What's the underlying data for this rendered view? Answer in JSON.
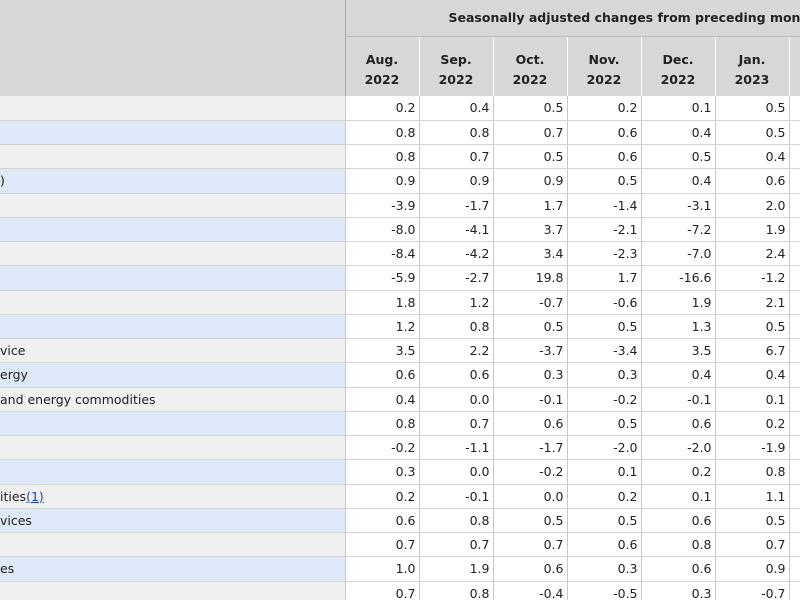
{
  "header": {
    "caption": "Seasonally adjusted changes from preceding month",
    "columns": [
      {
        "month": "Aug.",
        "year": "2022"
      },
      {
        "month": "Sep.",
        "year": "2022"
      },
      {
        "month": "Oct.",
        "year": "2022"
      },
      {
        "month": "Nov.",
        "year": "2022"
      },
      {
        "month": "Dec.",
        "year": "2022"
      },
      {
        "month": "Jan.",
        "year": "2023"
      }
    ]
  },
  "rows": [
    {
      "label": "",
      "footnote": "",
      "values": [
        "0.2",
        "0.4",
        "0.5",
        "0.2",
        "0.1",
        "0.5"
      ]
    },
    {
      "label": "",
      "footnote": "",
      "values": [
        "0.8",
        "0.8",
        "0.7",
        "0.6",
        "0.4",
        "0.5"
      ]
    },
    {
      "label": "",
      "footnote": "",
      "values": [
        "0.8",
        "0.7",
        "0.5",
        "0.6",
        "0.5",
        "0.4"
      ]
    },
    {
      "label": ")",
      "footnote": "",
      "values": [
        "0.9",
        "0.9",
        "0.9",
        "0.5",
        "0.4",
        "0.6"
      ]
    },
    {
      "label": "",
      "footnote": "",
      "values": [
        "-3.9",
        "-1.7",
        "1.7",
        "-1.4",
        "-3.1",
        "2.0"
      ]
    },
    {
      "label": "",
      "footnote": "",
      "values": [
        "-8.0",
        "-4.1",
        "3.7",
        "-2.1",
        "-7.2",
        "1.9"
      ]
    },
    {
      "label": "",
      "footnote": "",
      "values": [
        "-8.4",
        "-4.2",
        "3.4",
        "-2.3",
        "-7.0",
        "2.4"
      ]
    },
    {
      "label": "",
      "footnote": "",
      "values": [
        "-5.9",
        "-2.7",
        "19.8",
        "1.7",
        "-16.6",
        "-1.2"
      ]
    },
    {
      "label": "",
      "footnote": "",
      "values": [
        "1.8",
        "1.2",
        "-0.7",
        "-0.6",
        "1.9",
        "2.1"
      ]
    },
    {
      "label": "",
      "footnote": "",
      "values": [
        "1.2",
        "0.8",
        "0.5",
        "0.5",
        "1.3",
        "0.5"
      ]
    },
    {
      "label": "vice",
      "footnote": "",
      "values": [
        "3.5",
        "2.2",
        "-3.7",
        "-3.4",
        "3.5",
        "6.7"
      ]
    },
    {
      "label": "ergy",
      "footnote": "",
      "values": [
        "0.6",
        "0.6",
        "0.3",
        "0.3",
        "0.4",
        "0.4"
      ]
    },
    {
      "label": "and energy commodities",
      "footnote": "",
      "values": [
        "0.4",
        "0.0",
        "-0.1",
        "-0.2",
        "-0.1",
        "0.1"
      ]
    },
    {
      "label": "",
      "footnote": "",
      "values": [
        "0.8",
        "0.7",
        "0.6",
        "0.5",
        "0.6",
        "0.2"
      ]
    },
    {
      "label": "",
      "footnote": "",
      "values": [
        "-0.2",
        "-1.1",
        "-1.7",
        "-2.0",
        "-2.0",
        "-1.9"
      ]
    },
    {
      "label": "",
      "footnote": "",
      "values": [
        "0.3",
        "0.0",
        "-0.2",
        "0.1",
        "0.2",
        "0.8"
      ]
    },
    {
      "label": "ities",
      "footnote": "(1)",
      "values": [
        "0.2",
        "-0.1",
        "0.0",
        "0.2",
        "0.1",
        "1.1"
      ]
    },
    {
      "label": "vices",
      "footnote": "",
      "values": [
        "0.6",
        "0.8",
        "0.5",
        "0.5",
        "0.6",
        "0.5"
      ]
    },
    {
      "label": "",
      "footnote": "",
      "values": [
        "0.7",
        "0.7",
        "0.7",
        "0.6",
        "0.8",
        "0.7"
      ]
    },
    {
      "label": "es",
      "footnote": "",
      "values": [
        "1.0",
        "1.9",
        "0.6",
        "0.3",
        "0.6",
        "0.9"
      ]
    },
    {
      "label": "",
      "footnote": "",
      "values": [
        "0.7",
        "0.8",
        "-0.4",
        "-0.5",
        "0.3",
        "-0.7"
      ]
    }
  ]
}
